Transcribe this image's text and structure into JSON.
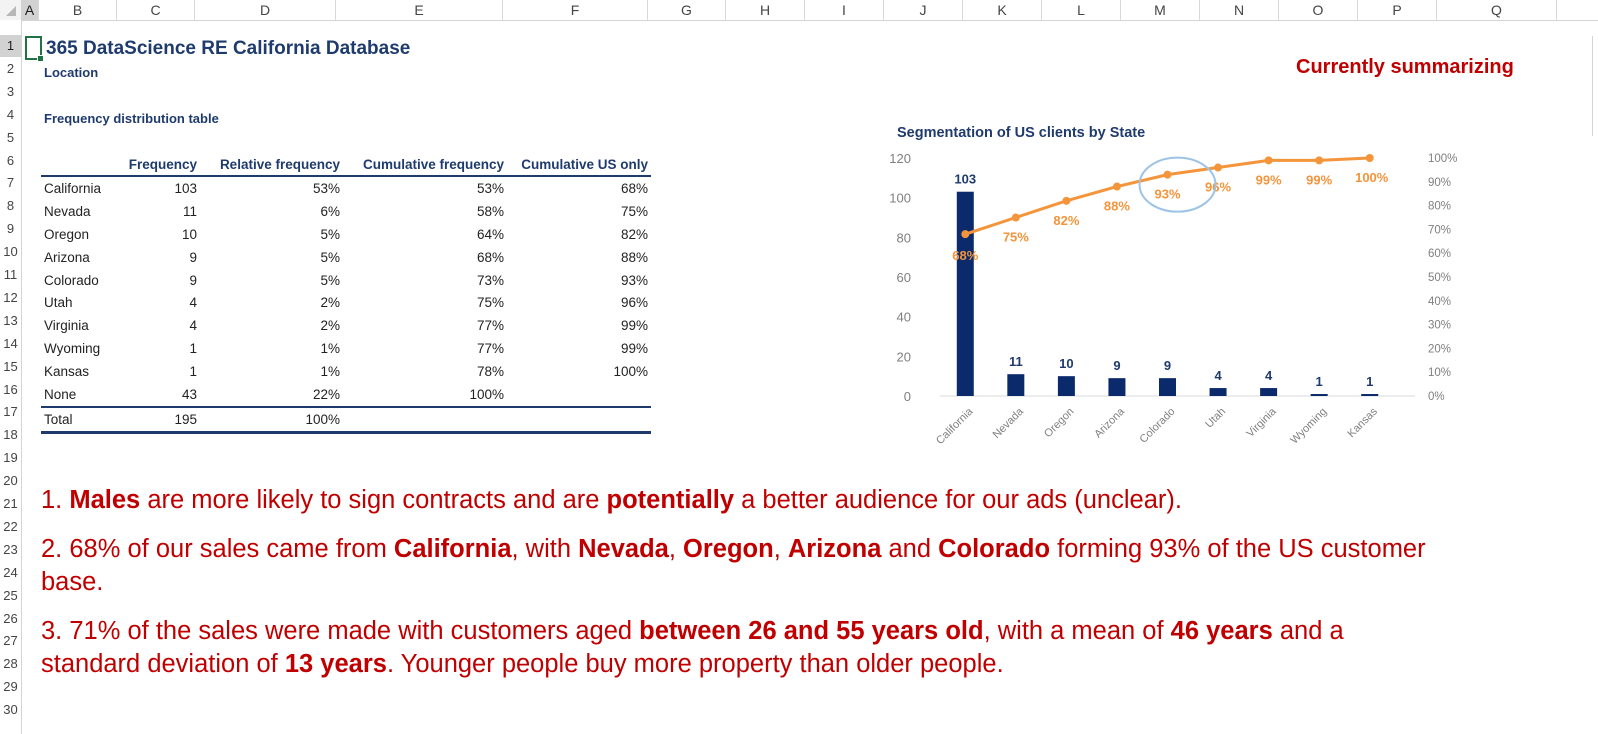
{
  "spreadsheet": {
    "columns": [
      "A",
      "B",
      "C",
      "D",
      "E",
      "F",
      "G",
      "H",
      "I",
      "J",
      "K",
      "L",
      "M",
      "N",
      "O",
      "P",
      "Q"
    ],
    "selected_column": "A",
    "rows": [
      "1",
      "2",
      "3",
      "4",
      "5",
      "6",
      "7",
      "8",
      "9",
      "10",
      "11",
      "12",
      "13",
      "14",
      "15",
      "16",
      "17",
      "18",
      "19",
      "20",
      "21",
      "22",
      "23",
      "24",
      "25",
      "26",
      "27",
      "28",
      "29",
      "30"
    ],
    "selected_row": "1"
  },
  "header": {
    "title": "365 DataScience RE California Database",
    "subtitle": "Location",
    "status": "Currently summarizing"
  },
  "table": {
    "title": "Frequency distribution table",
    "columns": [
      "",
      "Frequency",
      "Relative frequency",
      "Cumulative frequency",
      "Cumulative US only"
    ],
    "rows": [
      [
        "California",
        "103",
        "53%",
        "53%",
        "68%"
      ],
      [
        "Nevada",
        "11",
        "6%",
        "58%",
        "75%"
      ],
      [
        "Oregon",
        "10",
        "5%",
        "64%",
        "82%"
      ],
      [
        "Arizona",
        "9",
        "5%",
        "68%",
        "88%"
      ],
      [
        "Colorado",
        "9",
        "5%",
        "73%",
        "93%"
      ],
      [
        "Utah",
        "4",
        "2%",
        "75%",
        "96%"
      ],
      [
        "Virginia",
        "4",
        "2%",
        "77%",
        "99%"
      ],
      [
        "Wyoming",
        "1",
        "1%",
        "77%",
        "99%"
      ],
      [
        "Kansas",
        "1",
        "1%",
        "78%",
        "100%"
      ],
      [
        "None",
        "43",
        "22%",
        "100%",
        ""
      ]
    ],
    "total": [
      "Total",
      "195",
      "100%",
      "",
      ""
    ]
  },
  "chart_data": {
    "type": "bar",
    "title": "Segmentation of US clients by State",
    "categories": [
      "California",
      "Nevada",
      "Oregon",
      "Arizona",
      "Colorado",
      "Utah",
      "Virginia",
      "Wyoming",
      "Kansas"
    ],
    "series": [
      {
        "type": "bar",
        "values": [
          103,
          11,
          10,
          9,
          9,
          4,
          4,
          1,
          1
        ],
        "color": "#0b2a6b"
      },
      {
        "type": "line",
        "values": [
          68,
          75,
          82,
          88,
          93,
          96,
          99,
          99,
          100
        ],
        "color": "#f4943b",
        "axis": "right",
        "label_suffix": "%"
      }
    ],
    "ylim": [
      0,
      120
    ],
    "yticks": [
      0,
      20,
      40,
      60,
      80,
      100,
      120
    ],
    "y2lim": [
      0,
      100
    ],
    "y2ticks": [
      0,
      10,
      20,
      30,
      40,
      50,
      60,
      70,
      80,
      90,
      100
    ],
    "highlight_index": 4
  },
  "insights": [
    [
      {
        "t": "1. ",
        "b": false
      },
      {
        "t": "Males",
        "b": true
      },
      {
        "t": " are more likely to sign contracts and are ",
        "b": false
      },
      {
        "t": "potentially",
        "b": true
      },
      {
        "t": " a better audience for our ads (unclear).",
        "b": false
      }
    ],
    [
      {
        "t": "2. 68% of our sales came from ",
        "b": false
      },
      {
        "t": "California",
        "b": true
      },
      {
        "t": ", with ",
        "b": false
      },
      {
        "t": "Nevada",
        "b": true
      },
      {
        "t": ", ",
        "b": false
      },
      {
        "t": "Oregon",
        "b": true
      },
      {
        "t": ", ",
        "b": false
      },
      {
        "t": "Arizona",
        "b": true
      },
      {
        "t": " and ",
        "b": false
      },
      {
        "t": "Colorado",
        "b": true
      },
      {
        "t": " forming 93% of the US customer base.",
        "b": false
      }
    ],
    [
      {
        "t": "3. 71% of the sales were made with customers aged ",
        "b": false
      },
      {
        "t": "between 26 and 55 years old",
        "b": true
      },
      {
        "t": ", with a mean of ",
        "b": false
      },
      {
        "t": "46 years",
        "b": true
      },
      {
        "t": " and a standard deviation of ",
        "b": false
      },
      {
        "t": "13 years",
        "b": true
      },
      {
        "t": ". Younger people buy more property than older people.",
        "b": false
      }
    ]
  ]
}
